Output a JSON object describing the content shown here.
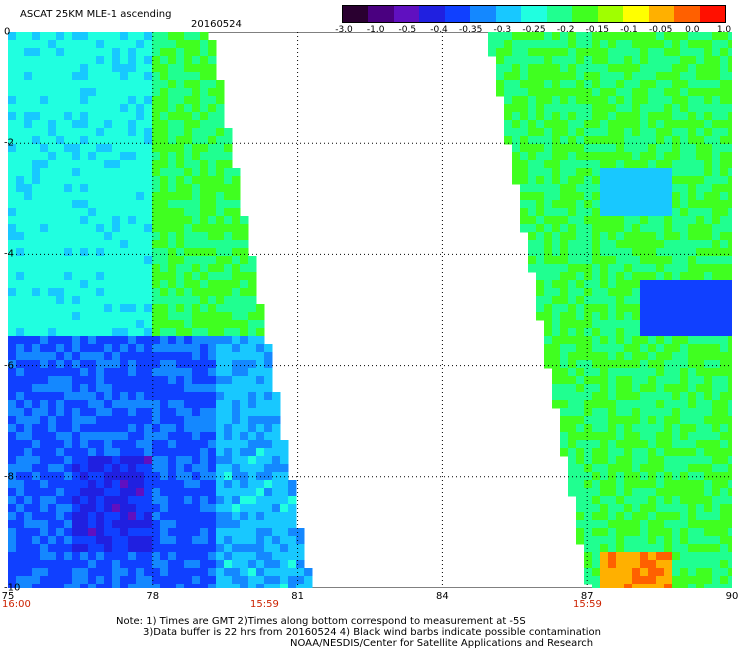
{
  "header": {
    "title": "ASCAT 25KM MLE-1 ascending",
    "date": "20160524"
  },
  "colorbar": {
    "tick_labels": [
      "-3.0",
      "-1.0",
      "-0.5",
      "-0.4",
      "-0.35",
      "-0.3",
      "-0.25",
      "-0.2",
      "-0.15",
      "-0.1",
      "-0.05",
      "0.0",
      "1.0"
    ],
    "colors": [
      "#2a0030",
      "#4a0080",
      "#6010c0",
      "#2020e0",
      "#1040ff",
      "#1488ff",
      "#18c8ff",
      "#20ffe0",
      "#20ff90",
      "#40ff20",
      "#a0ff00",
      "#ffff00",
      "#ffb000",
      "#ff6000",
      "#ff1000"
    ]
  },
  "map": {
    "lon_min": 75,
    "lon_max": 90,
    "lat_min": -10,
    "lat_max": 0,
    "x_ticks": [
      "75",
      "78",
      "81",
      "84",
      "87",
      "90"
    ],
    "y_ticks": [
      "0",
      "-2",
      "-4",
      "-6",
      "-8",
      "-10"
    ],
    "swath_times": [
      "16:00",
      "15:59",
      "15:59"
    ]
  },
  "notes": {
    "line1": "Note: 1) Times are GMT 2)Times along bottom correspond to measurement at -5S",
    "line2": "3)Data buffer is 22 hrs from 20160524 4) Black wind barbs indicate possible contamination",
    "line3": "NOAA/NESDIS/Center for Satellite Applications and Research"
  }
}
